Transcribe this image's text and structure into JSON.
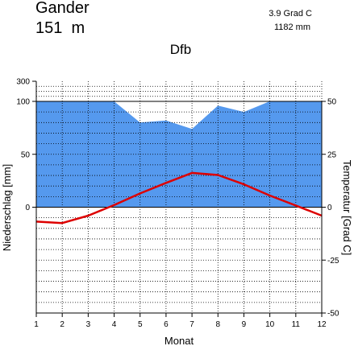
{
  "header": {
    "station": "Gander",
    "elevation": "151  m",
    "climate_class": "Dfb",
    "mean_temperature": "3.9 Grad C",
    "annual_precipitation": "1182 mm"
  },
  "chart_data": {
    "type": "line",
    "xlabel": "Monat",
    "ylabel_left": "Niederschlag [mm]",
    "ylabel_right": "Temperatur [Grad C]",
    "x": [
      1,
      2,
      3,
      4,
      5,
      6,
      7,
      8,
      9,
      10,
      11,
      12
    ],
    "x_tick_labels": [
      "1",
      "2",
      "3",
      "4",
      "5",
      "6",
      "7",
      "8",
      "9",
      "10",
      "11",
      "12"
    ],
    "precip_tick_labels": [
      "0",
      "50",
      "100",
      "300"
    ],
    "temp_tick_labels": [
      "50",
      "25",
      "0",
      "-25",
      "-50"
    ],
    "temp_ylim": [
      -50,
      50
    ],
    "precip_ylim_linear": [
      0,
      100
    ],
    "precip_compressed_top": 300,
    "grid": true,
    "series": [
      {
        "name": "Niederschlag",
        "kind": "area",
        "color": "#5599ee",
        "values": [
          100,
          100,
          101,
          100,
          80,
          82,
          74,
          96,
          90,
          101,
          100,
          100
        ]
      },
      {
        "name": "Temperatur",
        "kind": "line",
        "color": "#dd0000",
        "values": [
          -6.8,
          -7.5,
          -4,
          1,
          6.5,
          11.5,
          16.2,
          15.2,
          10.8,
          5.5,
          0.8,
          -4
        ]
      }
    ]
  }
}
